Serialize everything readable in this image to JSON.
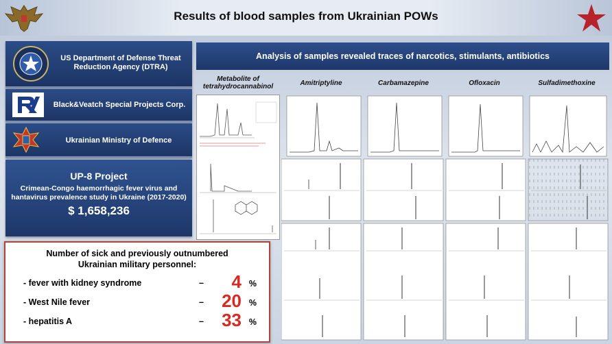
{
  "header": {
    "title": "Results of blood samples from Ukrainian POWs"
  },
  "orgs": [
    {
      "name": "US Department of Defense Threat Reduction Agency (DTRA)",
      "icon": "dtra-seal-icon"
    },
    {
      "name": "Black&Veatch Special Projects Corp.",
      "icon": "bv-logo-icon"
    },
    {
      "name": "Ukrainian Ministry of Defence",
      "icon": "ukraine-mod-emblem-icon"
    }
  ],
  "project": {
    "title": "UP-8 Project",
    "subtitle": "Crimean-Congo haemorrhagic fever virus and hantavirus prevalence study in Ukraine (2017-2020)",
    "amount": "$ 1,658,236"
  },
  "sick": {
    "heading": "Number of sick and previously outnumbered Ukrainian military personnel:",
    "rows": [
      {
        "label": "- fever with kidney syndrome",
        "dash": "–",
        "value": "4",
        "unit": "%"
      },
      {
        "label": "- West Nile fever",
        "dash": "–",
        "value": "20",
        "unit": "%"
      },
      {
        "label": "- hepatitis A",
        "dash": "–",
        "value": "33",
        "unit": "%"
      }
    ]
  },
  "analysis": {
    "banner": "Analysis of samples revealed traces of narcotics, stimulants, antibiotics",
    "columns": [
      "Metabolite of tetrahydrocannabinol",
      "Amitriptyline",
      "Carbamazepine",
      "Ofloxacin",
      "Sulfadimethoxine"
    ]
  },
  "colors": {
    "accent": "#1e3769",
    "alert": "#d62a23"
  }
}
